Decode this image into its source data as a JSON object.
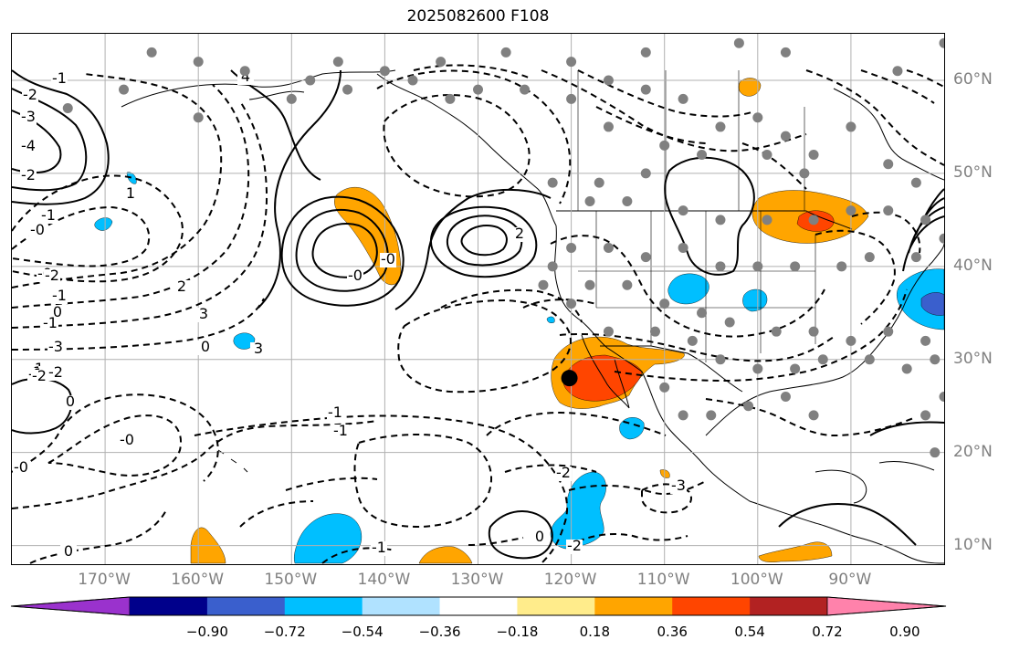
{
  "title": "2025082600 F108",
  "colors": {
    "contour": "#000000",
    "grid": "#b0b0b0",
    "coast": "#000000",
    "marker_gray": "#808080",
    "marker_black": "#000000"
  },
  "map": {
    "projection": "PlateCarree",
    "lon_range": [
      -180,
      -80
    ],
    "lat_range": [
      8,
      65
    ],
    "lon_ticks": [
      {
        "value": -170,
        "label": "170°W"
      },
      {
        "value": -160,
        "label": "160°W"
      },
      {
        "value": -150,
        "label": "150°W"
      },
      {
        "value": -140,
        "label": "140°W"
      },
      {
        "value": -130,
        "label": "130°W"
      },
      {
        "value": -120,
        "label": "120°W"
      },
      {
        "value": -110,
        "label": "110°W"
      },
      {
        "value": -100,
        "label": "100°W"
      },
      {
        "value": -90,
        "label": "90°W"
      }
    ],
    "lat_ticks": [
      {
        "value": 60,
        "label": "60°N"
      },
      {
        "value": 50,
        "label": "50°N"
      },
      {
        "value": 40,
        "label": "40°N"
      },
      {
        "value": 30,
        "label": "30°N"
      },
      {
        "value": 20,
        "label": "20°N"
      },
      {
        "value": 10,
        "label": "10°N"
      }
    ],
    "contour_labels": [
      "-1",
      "-2",
      "-3",
      "-4",
      "-2",
      "-1",
      "-0",
      "-0",
      "0",
      "1",
      "2",
      "3",
      "4",
      "-3",
      "-2",
      "-2",
      "-1",
      "-1",
      "0",
      "1",
      "2",
      "3",
      "-0",
      "-0",
      "1",
      "-1",
      "0",
      "-1",
      "-2",
      "-0",
      "-1",
      "-0",
      "-1",
      "0",
      "-2",
      "-3",
      "0",
      "-2"
    ],
    "highlight_marker": {
      "lon": -120.2,
      "lat": 28.0
    }
  },
  "colorbar": {
    "colors": [
      "#9a32cd",
      "#00008b",
      "#3a5fcd",
      "#00bfff",
      "#b0e2ff",
      "#ffffff",
      "#ffec8b",
      "#ffa500",
      "#ff4500",
      "#b22222",
      "#ff82ab"
    ],
    "ticks": [
      "−0.90",
      "−0.72",
      "−0.54",
      "−0.36",
      "−0.18",
      "0.18",
      "0.36",
      "0.54",
      "0.72",
      "0.90"
    ]
  }
}
